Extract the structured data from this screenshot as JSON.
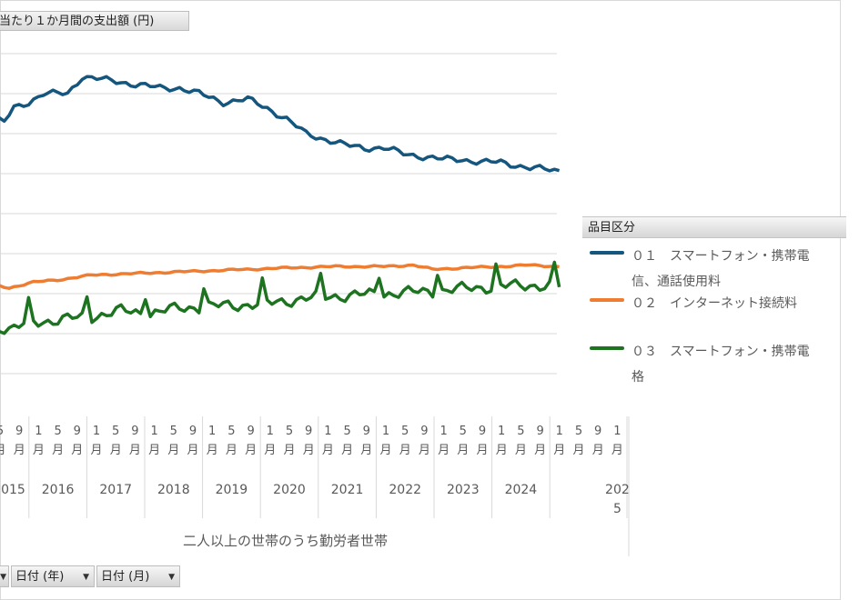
{
  "chart_title_button": "当たり１か月間の支出額 (円)",
  "legend": {
    "title": "品目区分",
    "items": [
      {
        "label": "０１　スマートフォン・携帯電\n信、通話使用料",
        "color": "#14567e"
      },
      {
        "label": "０２　インターネット接続料",
        "color": "#ef7d31"
      },
      {
        "label": "０３　スマートフォン・携帯電\n格",
        "color": "#1e7321"
      }
    ]
  },
  "axis_title": "二人以上の世帯のうち勤労者世帯",
  "filters": {
    "funnel_label": "▼",
    "year_label": "日付 (年)",
    "month_label": "日付 (月)"
  },
  "chart_data": {
    "type": "line",
    "title": "",
    "xlabel": "二人以上の世帯のうち勤労者世帯",
    "ylabel": "",
    "ylim": [
      0,
      14000
    ],
    "grid": true,
    "legend_position": "right",
    "x_month_ticks": [
      "5",
      "9",
      "1",
      "5",
      "9",
      "1",
      "5",
      "9",
      "1",
      "5",
      "9",
      "1",
      "5",
      "9",
      "1",
      "5",
      "9",
      "1",
      "5",
      "9",
      "1",
      "5",
      "9",
      "1",
      "5",
      "9",
      "1",
      "5",
      "9",
      "1",
      "5",
      "9",
      "1"
    ],
    "x_month_suffix": "月",
    "years": [
      "2015",
      "2016",
      "2017",
      "2018",
      "2019",
      "2020",
      "2021",
      "2022",
      "2023",
      "2024",
      "2025"
    ],
    "start": "2015-05",
    "end": "2025-01",
    "series": [
      {
        "name": "０１　スマートフォン・携帯電\n信、通話使用料",
        "color": "#14567e",
        "key": [
          [
            0,
            10300
          ],
          [
            2,
            10200
          ],
          [
            4,
            10700
          ],
          [
            7,
            10900
          ],
          [
            10,
            11200
          ],
          [
            15,
            11200
          ],
          [
            18,
            11800
          ],
          [
            22,
            11700
          ],
          [
            26,
            11600
          ],
          [
            30,
            11500
          ],
          [
            34,
            11400
          ],
          [
            38,
            11400
          ],
          [
            42,
            11200
          ],
          [
            47,
            10900
          ],
          [
            52,
            11000
          ],
          [
            56,
            10700
          ],
          [
            60,
            10300
          ],
          [
            64,
            9800
          ],
          [
            68,
            9600
          ],
          [
            72,
            9400
          ],
          [
            76,
            9300
          ],
          [
            80,
            9300
          ],
          [
            84,
            9100
          ],
          [
            88,
            9000
          ],
          [
            92,
            8900
          ],
          [
            96,
            8900
          ],
          [
            100,
            8800
          ],
          [
            104,
            8800
          ],
          [
            110,
            8600
          ],
          [
            116,
            8500
          ]
        ]
      },
      {
        "name": "０２　インターネット接続料",
        "color": "#ef7d31",
        "key": [
          [
            0,
            4500
          ],
          [
            3,
            4400
          ],
          [
            8,
            4600
          ],
          [
            14,
            4700
          ],
          [
            20,
            4850
          ],
          [
            28,
            4900
          ],
          [
            36,
            4950
          ],
          [
            44,
            5000
          ],
          [
            52,
            5050
          ],
          [
            60,
            5100
          ],
          [
            70,
            5150
          ],
          [
            80,
            5150
          ],
          [
            86,
            5200
          ],
          [
            90,
            5050
          ],
          [
            96,
            5100
          ],
          [
            104,
            5150
          ],
          [
            110,
            5200
          ],
          [
            116,
            5150
          ]
        ]
      },
      {
        "name": "０３　スマートフォン・携帯電\n格",
        "color": "#1e7321",
        "key": [
          [
            0,
            3100
          ],
          [
            3,
            2950
          ],
          [
            8,
            3200
          ],
          [
            14,
            3300
          ],
          [
            20,
            3400
          ],
          [
            26,
            3600
          ],
          [
            32,
            3500
          ],
          [
            38,
            3700
          ],
          [
            44,
            3750
          ],
          [
            50,
            3800
          ],
          [
            56,
            3850
          ],
          [
            62,
            4000
          ],
          [
            68,
            4100
          ],
          [
            74,
            4150
          ],
          [
            80,
            4200
          ],
          [
            86,
            4250
          ],
          [
            92,
            4300
          ],
          [
            98,
            4400
          ],
          [
            104,
            4450
          ],
          [
            110,
            4500
          ],
          [
            116,
            4450
          ]
        ]
      }
    ]
  }
}
